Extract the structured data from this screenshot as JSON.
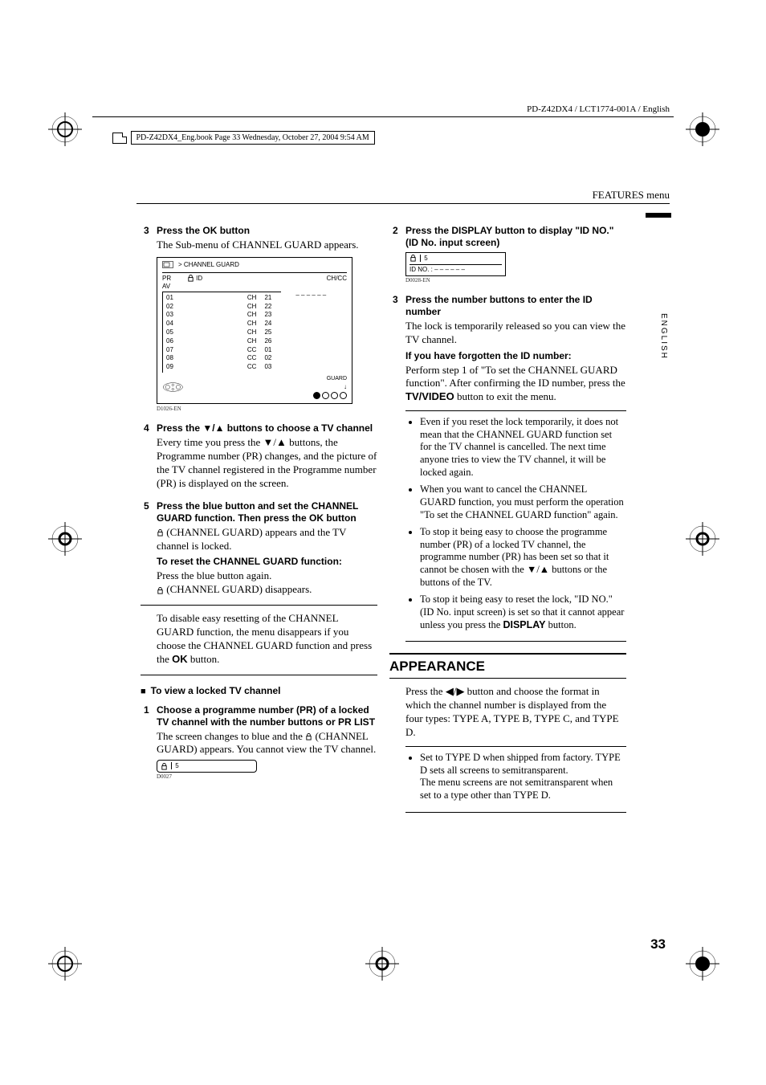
{
  "header": {
    "model": "PD-Z42DX4 / LCT1774-001A / English",
    "book_meta": "PD-Z42DX4_Eng.book  Page 33  Wednesday, October 27, 2004  9:54 AM",
    "section": "FEATURES menu",
    "vert": "ENGLISH"
  },
  "pageNum": "33",
  "left": {
    "s3": {
      "num": "3",
      "head_a": "Press the ",
      "head_ok": "OK",
      "head_b": " button",
      "body": "The Sub-menu of CHANNEL GUARD appears.",
      "osd_title": "> CHANNEL GUARD",
      "osd_h1a": "PR",
      "osd_h1b": "AV",
      "osd_h2": "ID",
      "osd_h3": "CH/CC",
      "rows": [
        {
          "pr": "01",
          "cc": "CH",
          "n": "21"
        },
        {
          "pr": "02",
          "cc": "CH",
          "n": "22"
        },
        {
          "pr": "03",
          "cc": "CH",
          "n": "23"
        },
        {
          "pr": "04",
          "cc": "CH",
          "n": "24"
        },
        {
          "pr": "05",
          "cc": "CH",
          "n": "25"
        },
        {
          "pr": "06",
          "cc": "CH",
          "n": "26"
        },
        {
          "pr": "07",
          "cc": "CC",
          "n": "01"
        },
        {
          "pr": "08",
          "cc": "CC",
          "n": "02"
        },
        {
          "pr": "09",
          "cc": "CC",
          "n": "03"
        }
      ],
      "guard_lbl": "GUARD",
      "figref": "D1026-EN"
    },
    "s4": {
      "num": "4",
      "head": "Press the ▼/▲ buttons to choose a TV channel",
      "body": "Every time you press the ▼/▲ buttons, the Programme number (PR) changes, and the picture of the TV channel registered in the Programme number (PR) is displayed on the screen."
    },
    "s5": {
      "num": "5",
      "head_a": "Press the blue button and set the CHANNEL GUARD function. Then press the ",
      "head_ok": "OK",
      "head_b": " button",
      "body": " (CHANNEL GUARD) appears and the TV channel is locked.",
      "sub1": "To reset the CHANNEL GUARD function:",
      "sub1b1": "Press the blue button again.",
      "sub1b2": " (CHANNEL GUARD) disappears.",
      "sub2": "To disable easy resetting of the CHANNEL GUARD function, the menu disappears if you choose the CHANNEL GUARD function and press the ",
      "sub2_ok": "OK",
      "sub2b": " button."
    },
    "view": {
      "title": "To view a locked TV channel",
      "s1num": "1",
      "s1head_a": "Choose a programme number (PR) of a locked TV channel with the number buttons or ",
      "s1head_b": "PR LIST",
      "s1body": "The screen changes to blue and the  (CHANNEL GUARD) appears. You cannot view the TV channel.",
      "osd_val": "5",
      "figref": "D0027"
    }
  },
  "right": {
    "s2": {
      "num": "2",
      "head_a": "Press the ",
      "head_disp": "DISPLAY",
      "head_b": " button to display \"ID NO.\" (ID No. input screen)",
      "osd_top": "5",
      "osd_idno": "ID NO.   :  – – – – – –",
      "figref": "D0028-EN"
    },
    "s3": {
      "num": "3",
      "head": "Press the number buttons to enter the ID number",
      "body": "The lock is temporarily released so you can view the TV channel.",
      "sub": "If you have forgotten the ID number:",
      "subbody_a": "Perform step 1 of \"To set the CHANNEL GUARD function\". After confirming the ID number, press the ",
      "subbody_tv": "TV/VIDEO",
      "subbody_b": " button to exit the menu."
    },
    "notes": {
      "n1": "Even if you reset the lock temporarily, it does not mean that the CHANNEL GUARD function set for the TV channel is cancelled. The next time anyone tries to view the TV channel, it will be locked again.",
      "n2": "When you want to cancel the CHANNEL GUARD function, you must perform the operation \"To set the CHANNEL GUARD function\" again.",
      "n3": "To stop it being easy to choose the programme number (PR) of a locked TV channel, the programme number (PR) has been set so that it cannot be chosen with the ▼/▲ buttons or the buttons of the TV.",
      "n4a": "To stop it being easy to reset the lock, \"ID NO.\" (ID No. input screen) is set so that it cannot appear unless you press the ",
      "n4_disp": "DISPLAY",
      "n4b": " button."
    },
    "appearance": {
      "title": "APPEARANCE",
      "body": "Press the ◀/▶ button and choose the format in which the channel number is displayed from the four types: TYPE A, TYPE B, TYPE C, and TYPE D.",
      "note": "Set to TYPE D when shipped from factory. TYPE D sets all screens to semitransparent.\nThe menu screens are not semitransparent when set to a type other than TYPE D."
    }
  }
}
